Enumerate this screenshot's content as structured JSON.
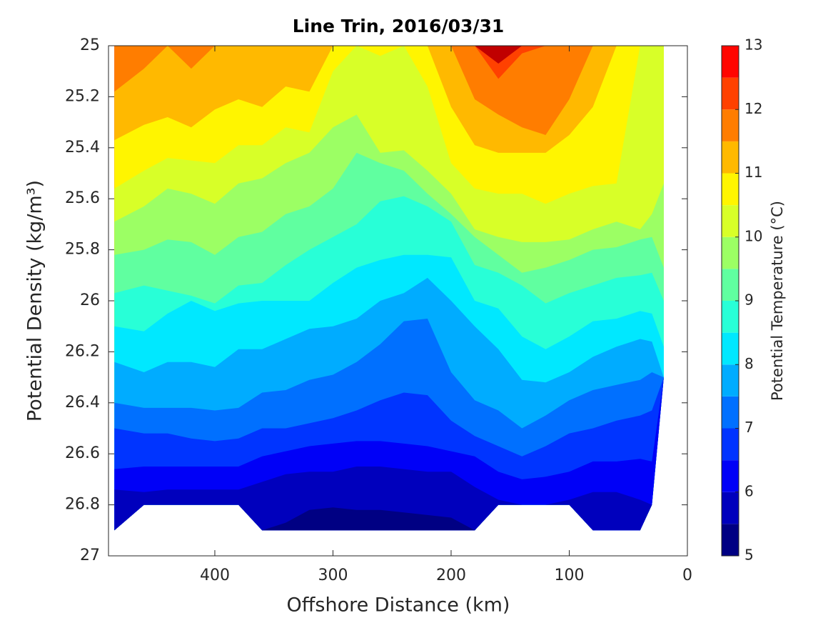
{
  "chart_data": {
    "type": "contourf",
    "title": "Line Trin, 2016/03/31",
    "xlabel": "Offshore Distance (km)",
    "ylabel": "Potential Density (kg/m³)",
    "xlim": [
      490,
      0
    ],
    "xticks": [
      400,
      300,
      200,
      100,
      0
    ],
    "ylim": [
      25,
      27
    ],
    "yticks": [
      25,
      25.2,
      25.4,
      25.6,
      25.8,
      26,
      26.2,
      26.4,
      26.6,
      26.8,
      27
    ],
    "x": [
      485,
      460,
      440,
      420,
      400,
      380,
      360,
      340,
      320,
      300,
      280,
      260,
      240,
      220,
      200,
      180,
      160,
      140,
      120,
      100,
      80,
      60,
      40,
      30,
      20
    ],
    "bottom": [
      26.9,
      26.8,
      26.8,
      26.8,
      26.8,
      26.8,
      26.9,
      26.9,
      26.9,
      26.9,
      26.9,
      26.9,
      26.9,
      26.9,
      26.9,
      26.9,
      26.8,
      26.8,
      26.8,
      26.8,
      26.9,
      26.9,
      26.9,
      26.8,
      26.3
    ],
    "contours": [
      {
        "level": 5.5,
        "values": [
          26.9,
          26.8,
          26.8,
          26.8,
          26.8,
          26.8,
          26.9,
          26.87,
          26.82,
          26.81,
          26.82,
          26.82,
          26.83,
          26.84,
          26.85,
          26.9,
          26.8,
          26.8,
          26.8,
          26.8,
          26.9,
          26.9,
          26.9,
          26.8,
          26.3
        ]
      },
      {
        "level": 6,
        "values": [
          26.74,
          26.75,
          26.74,
          26.74,
          26.74,
          26.74,
          26.71,
          26.68,
          26.67,
          26.67,
          26.65,
          26.65,
          26.66,
          26.67,
          26.67,
          26.73,
          26.78,
          26.8,
          26.8,
          26.78,
          26.75,
          26.75,
          26.78,
          26.8,
          26.3
        ]
      },
      {
        "level": 6.5,
        "values": [
          26.66,
          26.65,
          26.65,
          26.65,
          26.65,
          26.65,
          26.61,
          26.59,
          26.57,
          26.56,
          26.55,
          26.55,
          26.56,
          26.57,
          26.59,
          26.61,
          26.67,
          26.7,
          26.69,
          26.67,
          26.63,
          26.63,
          26.62,
          26.63,
          26.3
        ]
      },
      {
        "level": 7,
        "values": [
          26.5,
          26.52,
          26.52,
          26.54,
          26.55,
          26.54,
          26.5,
          26.5,
          26.48,
          26.46,
          26.43,
          26.39,
          26.36,
          26.37,
          26.47,
          26.53,
          26.57,
          26.61,
          26.57,
          26.52,
          26.5,
          26.47,
          26.45,
          26.43,
          26.3
        ]
      },
      {
        "level": 7.5,
        "values": [
          26.4,
          26.42,
          26.42,
          26.42,
          26.43,
          26.42,
          26.36,
          26.35,
          26.31,
          26.29,
          26.24,
          26.17,
          26.08,
          26.07,
          26.28,
          26.39,
          26.43,
          26.5,
          26.45,
          26.39,
          26.35,
          26.33,
          26.31,
          26.28,
          26.3
        ]
      },
      {
        "level": 8,
        "values": [
          26.24,
          26.28,
          26.24,
          26.24,
          26.26,
          26.19,
          26.19,
          26.15,
          26.11,
          26.1,
          26.07,
          26.0,
          25.97,
          25.91,
          26.0,
          26.1,
          26.19,
          26.31,
          26.32,
          26.28,
          26.22,
          26.18,
          26.15,
          26.16,
          26.3
        ]
      },
      {
        "level": 8.5,
        "values": [
          26.1,
          26.12,
          26.05,
          26.0,
          26.04,
          26.01,
          26.0,
          26.0,
          26.0,
          25.93,
          25.87,
          25.84,
          25.82,
          25.82,
          25.83,
          26.0,
          26.03,
          26.14,
          26.19,
          26.14,
          26.08,
          26.07,
          26.04,
          26.05,
          26.18
        ]
      },
      {
        "level": 9,
        "values": [
          25.97,
          25.94,
          25.96,
          25.98,
          26.01,
          25.94,
          25.93,
          25.86,
          25.8,
          25.75,
          25.7,
          25.61,
          25.59,
          25.63,
          25.69,
          25.86,
          25.89,
          25.94,
          26.01,
          25.97,
          25.94,
          25.91,
          25.9,
          25.89,
          26.0
        ]
      },
      {
        "level": 9.5,
        "values": [
          25.82,
          25.8,
          25.76,
          25.77,
          25.82,
          25.75,
          25.73,
          25.66,
          25.63,
          25.56,
          25.42,
          25.46,
          25.49,
          25.58,
          25.66,
          25.75,
          25.82,
          25.89,
          25.87,
          25.84,
          25.8,
          25.79,
          25.76,
          25.75,
          25.87
        ]
      },
      {
        "level": 10,
        "values": [
          25.69,
          25.63,
          25.56,
          25.58,
          25.62,
          25.54,
          25.52,
          25.46,
          25.42,
          25.32,
          25.27,
          25.42,
          25.41,
          25.49,
          25.58,
          25.72,
          25.75,
          25.77,
          25.77,
          25.76,
          25.72,
          25.69,
          25.72,
          25.66,
          25.54
        ]
      },
      {
        "level": 10.5,
        "values": [
          25.56,
          25.49,
          25.44,
          25.45,
          25.46,
          25.39,
          25.39,
          25.32,
          25.34,
          25.1,
          25.0,
          25.04,
          25.0,
          25.16,
          25.46,
          25.56,
          25.58,
          25.58,
          25.62,
          25.58,
          25.55,
          25.54,
          25.0,
          25.0,
          25.0
        ]
      },
      {
        "level": 11,
        "values": [
          25.37,
          25.31,
          25.28,
          25.32,
          25.25,
          25.21,
          25.24,
          25.16,
          25.18,
          25.0,
          25.0,
          25.0,
          25.0,
          25.0,
          25.24,
          25.39,
          25.42,
          25.42,
          25.42,
          25.35,
          25.24,
          25.0,
          25.0,
          25.0,
          25.0
        ]
      },
      {
        "level": 11.5,
        "values": [
          25.18,
          25.09,
          25.0,
          25.09,
          25.0,
          25.0,
          25.0,
          25.0,
          25.0,
          25.0,
          25.0,
          25.0,
          25.0,
          25.0,
          25.0,
          25.21,
          25.27,
          25.32,
          25.35,
          25.21,
          25.0,
          25.0,
          25.0,
          25.0,
          25.0
        ]
      },
      {
        "level": 12,
        "values": [
          25.0,
          25.0,
          25.0,
          25.0,
          25.0,
          25.0,
          25.0,
          25.0,
          25.0,
          25.0,
          25.0,
          25.0,
          25.0,
          25.0,
          25.0,
          25.0,
          25.13,
          25.03,
          25.0,
          25.0,
          25.0,
          25.0,
          25.0,
          25.0,
          25.0
        ]
      },
      {
        "level": 12.5,
        "values": [
          25.0,
          25.0,
          25.0,
          25.0,
          25.0,
          25.0,
          25.0,
          25.0,
          25.0,
          25.0,
          25.0,
          25.0,
          25.0,
          25.0,
          25.0,
          25.0,
          25.07,
          25.0,
          25.0,
          25.0,
          25.0,
          25.0,
          25.0,
          25.0,
          25.0
        ]
      }
    ],
    "colorbar": {
      "label": "Potential Temperature (°C)",
      "levels": [
        5,
        5.5,
        6,
        6.5,
        7,
        7.5,
        8,
        8.5,
        9,
        9.5,
        10,
        10.5,
        11,
        11.5,
        12,
        12.5,
        13
      ],
      "colors": [
        "#000083",
        "#0000bd",
        "#0000f7",
        "#0034ff",
        "#0070ff",
        "#00acff",
        "#00e8ff",
        "#28ffd7",
        "#60ffa0",
        "#9cff64",
        "#d8ff28",
        "#fff500",
        "#ffb900",
        "#ff7d00",
        "#ff4100",
        "#ff0500",
        "#c00000"
      ],
      "ticks": [
        5,
        6,
        7,
        8,
        9,
        10,
        11,
        12,
        13
      ]
    }
  }
}
